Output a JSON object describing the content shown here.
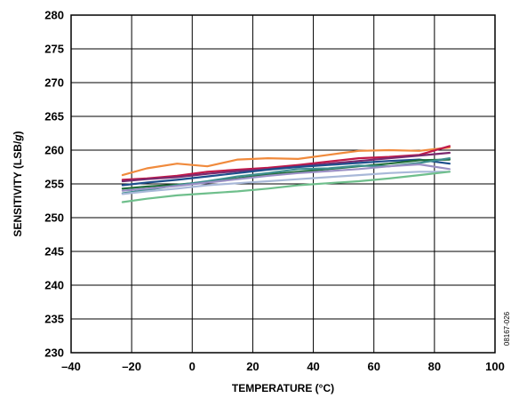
{
  "figure_id": "08167-026",
  "chart_data": {
    "type": "line",
    "title": "",
    "xlabel": "TEMPERATURE (°C)",
    "ylabel_main": "SENSITIVITY (LSB/",
    "ylabel_italic": "g",
    "ylabel_close": ")",
    "xlim": [
      -40,
      100
    ],
    "ylim": [
      230,
      280
    ],
    "x_ticks": [
      -40,
      -20,
      0,
      20,
      40,
      60,
      80,
      100
    ],
    "x_tick_labels": [
      "–40",
      "–20",
      "0",
      "20",
      "40",
      "60",
      "80",
      "100"
    ],
    "y_ticks": [
      230,
      235,
      240,
      245,
      250,
      255,
      260,
      265,
      270,
      275,
      280
    ],
    "y_tick_labels": [
      "230",
      "235",
      "240",
      "245",
      "250",
      "255",
      "260",
      "265",
      "270",
      "275",
      "280"
    ],
    "grid": true,
    "legend": "none",
    "x": [
      -23,
      -15,
      -5,
      5,
      15,
      25,
      35,
      45,
      55,
      65,
      75,
      85
    ],
    "series": [
      {
        "color": "#f08a3c",
        "values": [
          256.3,
          257.3,
          258.0,
          257.6,
          258.6,
          258.8,
          258.7,
          259.3,
          259.9,
          260.0,
          259.9,
          260.4
        ]
      },
      {
        "color": "#c0194a",
        "values": [
          255.6,
          255.8,
          256.2,
          256.8,
          257.1,
          257.4,
          257.8,
          258.3,
          258.8,
          259.0,
          259.3,
          260.6
        ]
      },
      {
        "color": "#7a2a6e",
        "values": [
          255.4,
          255.7,
          256.0,
          256.5,
          256.9,
          257.2,
          257.6,
          258.0,
          258.4,
          258.8,
          259.2,
          259.6
        ]
      },
      {
        "color": "#1e4f8c",
        "values": [
          254.8,
          255.2,
          255.6,
          256.1,
          256.6,
          257.1,
          257.5,
          257.8,
          258.1,
          258.4,
          258.6,
          258.0
        ]
      },
      {
        "color": "#1f6e3a",
        "values": [
          254.3,
          254.6,
          254.9,
          255.3,
          255.8,
          256.4,
          256.8,
          257.2,
          257.6,
          258.0,
          258.5,
          258.6
        ]
      },
      {
        "color": "#3f8f8f",
        "values": [
          253.6,
          254.1,
          254.8,
          255.4,
          256.1,
          256.6,
          257.2,
          257.3,
          257.7,
          257.6,
          258.1,
          258.8
        ]
      },
      {
        "color": "#9a8fc4",
        "values": [
          254.0,
          254.3,
          254.7,
          255.2,
          255.7,
          256.2,
          256.6,
          256.9,
          257.2,
          257.6,
          257.9,
          257.2
        ]
      },
      {
        "color": "#a8b8d8",
        "values": [
          253.5,
          253.9,
          254.3,
          254.8,
          255.1,
          255.4,
          255.7,
          256.0,
          256.3,
          256.6,
          256.8,
          256.8
        ]
      },
      {
        "color": "#6fbf8c",
        "values": [
          252.3,
          252.8,
          253.3,
          253.6,
          253.9,
          254.3,
          254.8,
          255.1,
          255.4,
          255.8,
          256.3,
          256.8
        ]
      }
    ]
  }
}
